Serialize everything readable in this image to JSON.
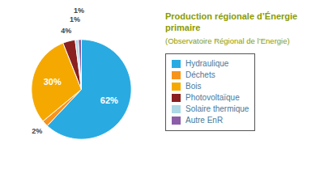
{
  "chart_data": {
    "type": "pie",
    "title": "Production régionale d’Énergie primaire",
    "subtitle": "(Observatoire Régional de l’Energie)",
    "categories": [
      "Hydraulique",
      "Déchets",
      "Bois",
      "Photovoltaïque",
      "Solaire thermique",
      "Autre EnR"
    ],
    "values": [
      62,
      2,
      30,
      4,
      1,
      1
    ],
    "value_labels": [
      "62%",
      "2%",
      "30%",
      "4%",
      "1%",
      "1%"
    ],
    "colors": [
      "#29ABE2",
      "#F7941D",
      "#F5A800",
      "#8B2020",
      "#ADD8E6",
      "#8B5EA7"
    ],
    "data_labels": true,
    "legend": "right"
  }
}
